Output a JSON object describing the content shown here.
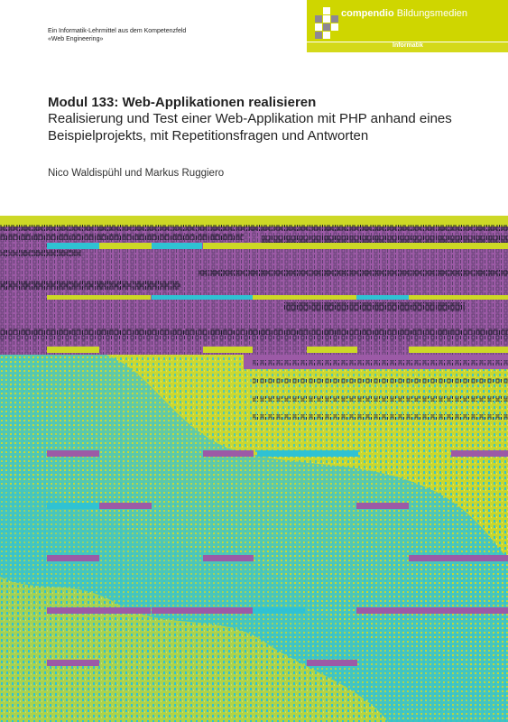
{
  "series": {
    "line1": "Ein Informatik-Lehrmittel aus dem Kompetenzfeld",
    "line2": "«Web Engineering»"
  },
  "publisher": {
    "name_bold": "compendio",
    "name_rest": " Bildungsmedien",
    "category": "Informatik"
  },
  "book": {
    "title": "Modul 133: Web-Applikationen realisieren",
    "subtitle": "Realisierung und Test einer Web-Applikation mit PHP anhand eines Beispielprojekts, mit Repetitionsfragen und Antworten",
    "authors": "Nico Waldispühl und Markus Ruggiero"
  },
  "colors": {
    "accent_yellow": "#cfd600",
    "logo_grey": "#8e8793",
    "purple": "#9c5aa6",
    "cyan": "#2fc2d3",
    "lime": "#cdd826",
    "ink": "#1c1c2a"
  }
}
